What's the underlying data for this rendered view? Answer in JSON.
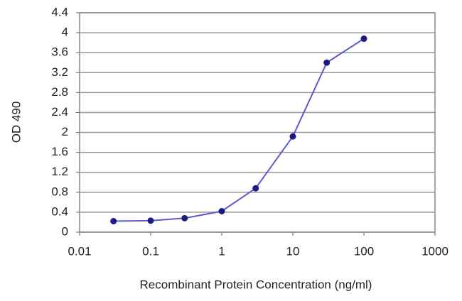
{
  "chart_data": {
    "type": "line",
    "x_label": "Recombinant Protein Concentration (ng/ml)",
    "y_label": "OD 490",
    "x": [
      0.03,
      0.1,
      0.3,
      1,
      3,
      10,
      30,
      100
    ],
    "series": [
      {
        "color": "#5a5acc",
        "marker_color": "#1c1c80",
        "values": [
          0.22,
          0.23,
          0.28,
          0.42,
          0.88,
          1.92,
          3.4,
          3.88
        ]
      }
    ],
    "xscale": "log",
    "xlim": [
      0.01,
      1000
    ],
    "xticks": [
      0.01,
      0.1,
      1,
      10,
      100,
      1000
    ],
    "ylim": [
      0,
      4.4
    ],
    "yticks": [
      0,
      0.4,
      0.8,
      1.2,
      1.6,
      2,
      2.4,
      2.8,
      3.2,
      3.6,
      4,
      4.4
    ],
    "grid": true
  }
}
